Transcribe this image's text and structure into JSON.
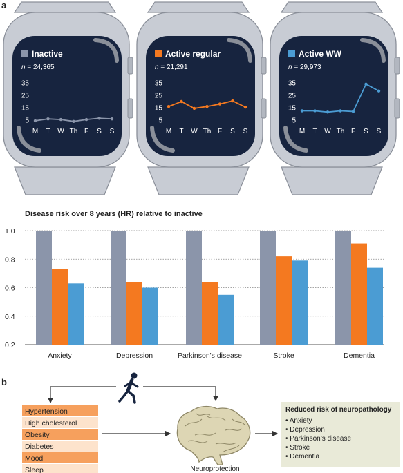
{
  "panel_a": {
    "letter": "a",
    "watch_y_ticks": [
      "35",
      "25",
      "15",
      "5"
    ],
    "watch_days": [
      "M",
      "T",
      "W",
      "Th",
      "F",
      "S",
      "S"
    ],
    "watches": [
      {
        "label": "Inactive",
        "n_prefix": "n",
        "n_value": " = 24,365",
        "color": "#8b95aa",
        "weekly": [
          4.5,
          6,
          5.5,
          4,
          5.5,
          6.5,
          6
        ]
      },
      {
        "label": "Active regular",
        "n_prefix": "n",
        "n_value": " = 21,291",
        "color": "#f47920",
        "weekly": [
          16,
          20,
          14.5,
          16,
          18,
          20.5,
          15.5
        ]
      },
      {
        "label": "Active WW",
        "n_prefix": "n",
        "n_value": " = 29,973",
        "color": "#4b9cd3",
        "weekly": [
          12.5,
          12.5,
          11.5,
          12.5,
          12,
          34,
          28.5
        ]
      }
    ]
  },
  "chart_data": {
    "type": "bar",
    "title": "Disease risk over 8 years (HR) relative to inactive",
    "categories": [
      "Anxiety",
      "Depression",
      "Parkinson's disease",
      "Stroke",
      "Dementia"
    ],
    "series": [
      {
        "name": "Inactive",
        "color": "#8b95aa",
        "values": [
          1.0,
          1.0,
          1.0,
          1.0,
          1.0
        ]
      },
      {
        "name": "Active regular",
        "color": "#f47920",
        "values": [
          0.73,
          0.64,
          0.64,
          0.82,
          0.91
        ]
      },
      {
        "name": "Active WW",
        "color": "#4b9cd3",
        "values": [
          0.63,
          0.6,
          0.55,
          0.79,
          0.74
        ]
      }
    ],
    "ylim": [
      0.2,
      1.0
    ],
    "yticks": [
      "1.0",
      "0.8",
      "0.6",
      "0.4",
      "0.2"
    ],
    "grid": true
  },
  "panel_b": {
    "letter": "b",
    "risk_factors": [
      {
        "label": "Hypertension",
        "color": "#f6a05d"
      },
      {
        "label": "High cholesterol",
        "color": "#fde3cc"
      },
      {
        "label": "Obesity",
        "color": "#f6a05d"
      },
      {
        "label": "Diabetes",
        "color": "#fde3cc"
      },
      {
        "label": "Mood",
        "color": "#f6a05d"
      },
      {
        "label": "Sleep",
        "color": "#fde3cc"
      }
    ],
    "center_label": "Neuroprotection",
    "result_title": "Reduced risk of neuropathology",
    "result_items": [
      "• Anxiety",
      "• Depression",
      "• Parkinson’s disease",
      "• Stroke",
      "• Dementia"
    ]
  }
}
